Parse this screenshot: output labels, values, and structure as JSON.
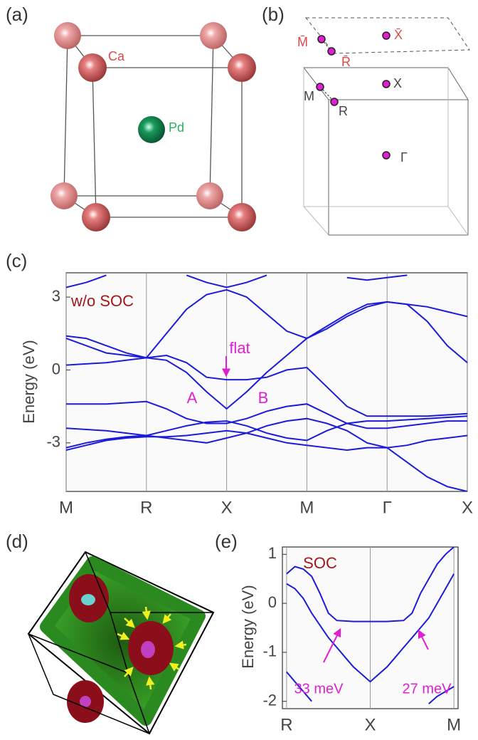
{
  "panel_labels": [
    "(a)",
    "(b)",
    "(c)",
    "(d)",
    "(e)"
  ],
  "crystal": {
    "atoms": [
      "Ca",
      "Pd"
    ]
  },
  "brillouin_zone": {
    "points": [
      "M̄",
      "R̄",
      "X̄",
      "M",
      "R",
      "X",
      "Γ"
    ]
  },
  "chart_data": [
    {
      "type": "line",
      "y_label": "Energy (eV)",
      "annotations": [
        "w/o SOC",
        "flat",
        "A",
        "B"
      ],
      "x": [
        0,
        0.25,
        0.5,
        0.75,
        1,
        1.25,
        1.5,
        1.75,
        2,
        2.25,
        2.5,
        2.75,
        3,
        3.25,
        3.5,
        3.75,
        4,
        4.25,
        4.5,
        4.75,
        5
      ],
      "xlim": [
        0,
        5
      ],
      "ylim": [
        -5,
        4
      ],
      "yticks": [
        -3,
        0,
        3
      ],
      "xticks": [
        {
          "value": 0,
          "label": "M"
        },
        {
          "value": 1,
          "label": "R"
        },
        {
          "value": 2,
          "label": "X"
        },
        {
          "value": 3,
          "label": "M"
        },
        {
          "value": 4,
          "label": "Γ"
        },
        {
          "value": 5,
          "label": "X"
        }
      ],
      "series": [
        {
          "color": "#1c1cd8",
          "values": [
            -3.3,
            -3.1,
            -2.9,
            -2.8,
            -2.75,
            -2.75,
            -2.7,
            -2.6,
            -2.5,
            -2.6,
            -2.8,
            -3.0,
            -3.1,
            -3.2,
            -3.3,
            -3.2,
            -3.2,
            -3.1,
            -2.9,
            -2.8,
            -2.7
          ]
        },
        {
          "color": "#1c1cd8",
          "values": [
            -3.2,
            -3.0,
            -2.85,
            -2.75,
            -2.7,
            -2.5,
            -2.3,
            -2.15,
            -2.1,
            -2.3,
            -2.6,
            -2.8,
            -2.9,
            -2.5,
            -2.2,
            -2.1,
            -2.1,
            -2.05,
            -2.0,
            -1.95,
            -1.9
          ]
        },
        {
          "color": "#1c1cd8",
          "values": [
            -2.4,
            -2.45,
            -2.5,
            -2.6,
            -2.7,
            -2.8,
            -2.9,
            -3.0,
            -2.8,
            -2.6,
            -2.3,
            -2.1,
            -2.0,
            -2.2,
            -2.5,
            -3.0,
            -3.2,
            -3.8,
            -4.4,
            -4.8,
            -5
          ]
        },
        {
          "color": "#1c1cd8",
          "values": [
            -1.4,
            -1.4,
            -1.4,
            -1.35,
            -1.3,
            -1.6,
            -2.0,
            -2.2,
            -2.2,
            -2.0,
            -1.7,
            -1.5,
            -1.4,
            -1.8,
            -2.2,
            -2.4,
            -2.4,
            -2.3,
            -2.2,
            -2.1,
            -2.1
          ]
        },
        {
          "color": "#1c1cd8",
          "values": [
            0.2,
            0.25,
            0.3,
            0.4,
            0.5,
            0.4,
            -0.1,
            -0.9,
            -1.6,
            -0.9,
            -0.1,
            0.6,
            1.3,
            1.7,
            2.2,
            2.6,
            2.8,
            2.7,
            2.0,
            1.0,
            0.3
          ]
        },
        {
          "color": "#1c1cd8",
          "values": [
            1.3,
            1.0,
            0.7,
            0.6,
            0.5,
            0.6,
            0.3,
            -0.3,
            -0.4,
            -0.4,
            -0.3,
            0.0,
            0.1,
            -0.7,
            -1.5,
            -1.9,
            -1.9,
            -1.9,
            -1.9,
            -1.85,
            -1.8
          ]
        },
        {
          "color": "#1c1cd8",
          "values": [
            1.4,
            1.3,
            1.0,
            0.7,
            0.5,
            1.5,
            2.5,
            3.1,
            3.3,
            3.0,
            2.3,
            1.6,
            1.3,
            1.8,
            2.3,
            2.7,
            2.8,
            2.7,
            2.6,
            2.4,
            2.2
          ]
        },
        {
          "color": "#1c1cd8",
          "values": [
            3.4,
            3.6,
            3.9,
            null,
            null,
            null,
            3.9,
            3.6,
            3.4,
            3.6,
            3.9,
            null,
            null,
            null,
            3.8,
            3.7,
            3.8,
            3.9,
            null,
            null,
            null
          ]
        }
      ]
    },
    {
      "type": "line",
      "y_label": "Energy (eV)",
      "annotations": [
        "SOC",
        "33 meV",
        "27 meV"
      ],
      "x": [
        0,
        0.1,
        0.2,
        0.3,
        0.4,
        0.5,
        0.6,
        0.7,
        0.8,
        0.9,
        1,
        1.1,
        1.2,
        1.3,
        1.4,
        1.5,
        1.6,
        1.7,
        1.8,
        1.9,
        2
      ],
      "xlim": [
        -0.05,
        2.05
      ],
      "ylim": [
        -2.15,
        1.15
      ],
      "yticks": [
        -2,
        -1,
        0,
        1
      ],
      "xticks": [
        {
          "value": 0,
          "label": "R"
        },
        {
          "value": 1,
          "label": "X"
        },
        {
          "value": 2,
          "label": "M"
        }
      ],
      "series": [
        {
          "color": "#1c1cd8",
          "values": [
            0.4,
            0.3,
            0.1,
            -0.2,
            -0.45,
            -0.7,
            -0.9,
            -1.1,
            -1.3,
            -1.45,
            -1.6,
            -1.45,
            -1.3,
            -1.1,
            -0.9,
            -0.7,
            -0.5,
            -0.3,
            0.0,
            0.3,
            0.6
          ]
        },
        {
          "color": "#1c1cd8",
          "values": [
            0.6,
            0.75,
            0.7,
            0.55,
            0.2,
            -0.2,
            -0.35,
            -0.36,
            -0.37,
            -0.37,
            -0.37,
            -0.37,
            -0.37,
            -0.36,
            -0.35,
            -0.2,
            0.2,
            0.5,
            0.8,
            1.0,
            1.15
          ]
        },
        {
          "color": "#1c1cd8",
          "values": [
            -1.4,
            -1.6,
            -1.8,
            -2.0,
            null,
            null,
            null,
            null,
            null,
            null,
            null,
            null,
            null,
            null,
            null,
            null,
            null,
            -2.05,
            -1.9,
            -1.8,
            -1.7
          ]
        }
      ]
    }
  ]
}
